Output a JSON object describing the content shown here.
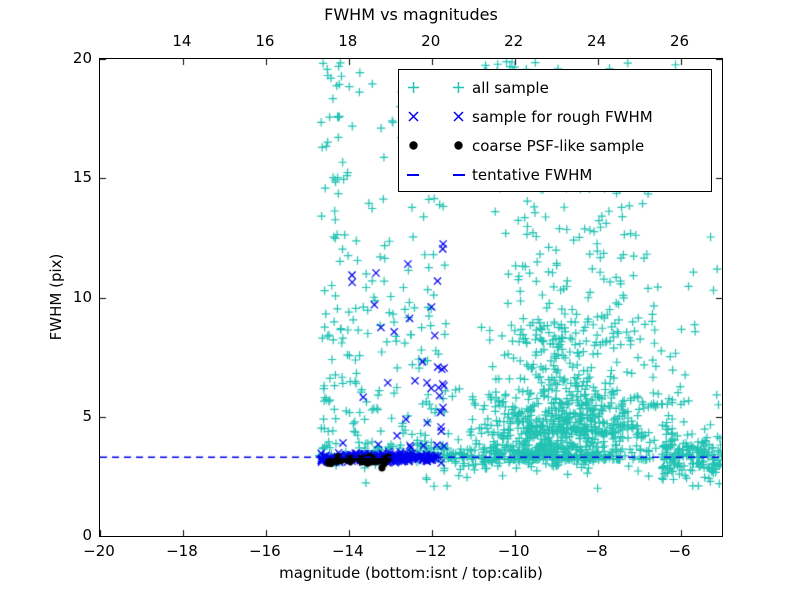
{
  "title": "FWHM vs magnitudes",
  "colors": {
    "cyan": "#21C2B3",
    "blue": "#0000EE",
    "black": "#000000",
    "frame": "#000000"
  },
  "legend": {
    "items": [
      {
        "label": "all sample",
        "marker": "plus",
        "color": "#21C2B3"
      },
      {
        "label": "sample for rough FWHM",
        "marker": "x",
        "color": "#0000EE"
      },
      {
        "label": "coarse PSF-like sample",
        "marker": "dot",
        "color": "#000000"
      },
      {
        "label": "tentative FWHM",
        "marker": "dash",
        "color": "#0000EE"
      }
    ]
  },
  "chart_data": {
    "type": "scatter",
    "title": "FWHM vs magnitudes",
    "xlabel": "magnitude (bottom:isnt / top:calib)",
    "ylabel": "FWHM (pix)",
    "grid": false,
    "legend_position": "upper right",
    "tentative_fwhm": 3.3,
    "seed": 7,
    "axes": {
      "x_bottom": {
        "range": [
          -20,
          -5
        ],
        "tick_values": [
          -20,
          -18,
          -16,
          -14,
          -12,
          -10,
          -8,
          -6
        ],
        "tick_labels": [
          "−20",
          "−18",
          "−16",
          "−14",
          "−12",
          "−10",
          "−8",
          "−6"
        ]
      },
      "x_top": {
        "range": [
          12,
          27
        ],
        "tick_values": [
          14,
          16,
          18,
          20,
          22,
          24,
          26
        ],
        "tick_labels": [
          "14",
          "16",
          "18",
          "20",
          "22",
          "24",
          "26"
        ]
      },
      "y_left": {
        "range": [
          0,
          20
        ],
        "tick_values": [
          0,
          5,
          10,
          15,
          20
        ],
        "tick_labels": [
          "0",
          "5",
          "10",
          "15",
          "20"
        ]
      }
    },
    "series": [
      {
        "name": "all sample",
        "marker": "plus",
        "color": "#21C2B3",
        "clusters": [
          {
            "n": 90,
            "x": [
              "uniform",
              -14.72,
              -14.0
            ],
            "y": [
              "power",
              3.3,
              20,
              1.9
            ]
          },
          {
            "n": 200,
            "x": [
              "uniform",
              -14.0,
              -11.5
            ],
            "y": [
              "power",
              3.3,
              20,
              3.0
            ]
          },
          {
            "n": 40,
            "x": [
              "uniform",
              -14.7,
              -11.8
            ],
            "y": [
              "normal",
              3.5,
              0.3,
              2.8,
              4.4
            ]
          },
          {
            "n": 150,
            "x": [
              "uniform",
              -11.75,
              -8.0
            ],
            "y": [
              "normal",
              3.35,
              0.28,
              2.4,
              4.3
            ]
          },
          {
            "n": 600,
            "x": [
              "normal",
              -8.8,
              1.15,
              -11.6,
              -6.2
            ],
            "y": [
              "power",
              3.2,
              6.2,
              1.9
            ]
          },
          {
            "n": 300,
            "x": [
              "normal",
              -8.7,
              0.85,
              -10.8,
              -6.5
            ],
            "y": [
              "power",
              4.3,
              9.0,
              1.7
            ]
          },
          {
            "n": 170,
            "x": [
              "normal",
              -8.6,
              0.95,
              -10.6,
              -6.4
            ],
            "y": [
              "power",
              8.0,
              15.5,
              1.6
            ]
          },
          {
            "n": 80,
            "x": [
              "uniform",
              -11.0,
              -5.3
            ],
            "y": [
              "power",
              14.5,
              20,
              1.3
            ]
          },
          {
            "n": 14,
            "x": [
              "uniform",
              -10.7,
              -9.5
            ],
            "y": [
              "uniform",
              19.3,
              20.0
            ]
          },
          {
            "n": 170,
            "x": [
              "uniform",
              -6.45,
              -5.0
            ],
            "y": [
              "normal",
              3.35,
              0.55,
              2.1,
              5.7
            ]
          },
          {
            "n": 35,
            "x": [
              "uniform",
              -6.9,
              -5.05
            ],
            "y": [
              "power",
              5.5,
              13,
              2.2
            ]
          },
          {
            "n": 22,
            "x": [
              "uniform",
              -13.6,
              -5.2
            ],
            "y": [
              "uniform",
              2.0,
              2.95
            ]
          }
        ]
      },
      {
        "name": "sample for rough FWHM",
        "marker": "x",
        "color": "#0000EE",
        "clusters": [
          {
            "n": 240,
            "x": [
              "uniform",
              -14.67,
              -11.75
            ],
            "y": [
              "normal",
              3.28,
              0.09,
              3.0,
              3.6
            ]
          },
          {
            "n": 40,
            "x": [
              "power",
              -11.7,
              -14.4,
              1.7
            ],
            "y": [
              "power",
              3.7,
              12.3,
              1.9
            ]
          }
        ]
      },
      {
        "name": "coarse PSF-like sample",
        "marker": "dot",
        "color": "#000000",
        "clusters": [
          {
            "n": 46,
            "x": [
              "uniform",
              -14.55,
              -13.02
            ],
            "y": [
              "normal",
              3.18,
              0.08,
              2.98,
              3.42
            ]
          }
        ],
        "extra_points": [
          [
            -13.2,
            2.86
          ]
        ]
      },
      {
        "name": "tentative FWHM",
        "marker": "dash",
        "color": "#0000EE",
        "hline_y": 3.3
      }
    ]
  }
}
